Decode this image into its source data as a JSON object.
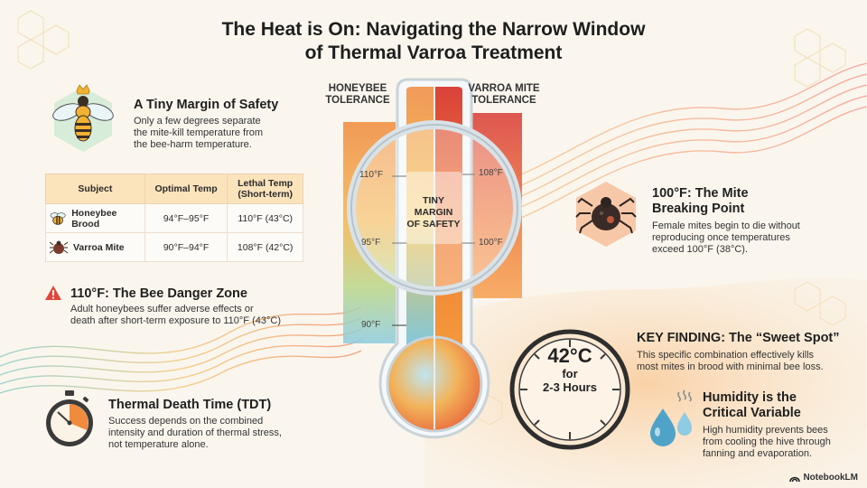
{
  "title": {
    "line1": "The Heat is On: Navigating the Narrow Window",
    "line2": "of Thermal Varroa Treatment"
  },
  "margin_safety": {
    "heading": "A Tiny Margin of Safety",
    "text1": "Only a few degrees separate",
    "text2": "the mite-kill temperature from",
    "text3": "the bee-harm temperature."
  },
  "table": {
    "headers": [
      "Subject",
      "Optimal Temp",
      "Lethal Temp (Short-term)"
    ],
    "rows": [
      {
        "subject": "Honeybee Brood",
        "optimal": "94°F–95°F",
        "lethal": "110°F (43°C)"
      },
      {
        "subject": "Varroa Mite",
        "optimal": "90°F–94°F",
        "lethal": "108°F (42°C)"
      }
    ]
  },
  "danger": {
    "heading": "110°F: The Bee Danger Zone",
    "text1": "Adult honeybees suffer adverse effects or",
    "text2": "death after short-term exposure to 110°F (43°C)"
  },
  "tdt": {
    "heading": "Thermal Death Time (TDT)",
    "text1": "Success depends on the combined",
    "text2": "intensity and duration of thermal stress,",
    "text3": "not temperature alone."
  },
  "thermometer": {
    "left_head1": "HONEYBEE",
    "left_head2": "TOLERANCE",
    "right_head1": "VARROA MITE",
    "right_head2": "TOLERANCE",
    "left_marks": [
      "110°F",
      "95°F",
      "90°F"
    ],
    "right_marks": [
      "108°F",
      "100°F"
    ],
    "center1": "TINY",
    "center2": "MARGIN",
    "center3": "OF SAFETY"
  },
  "mite_point": {
    "heading1": "100°F: The Mite",
    "heading2": "Breaking Point",
    "text1": "Female mites begin to die without",
    "text2": "reproducing once temperatures",
    "text3": "exceed 100°F (38°C)."
  },
  "key_finding": {
    "heading": "KEY FINDING: The “Sweet Spot”",
    "text1": "This specific combination effectively kills",
    "text2": "most mites in brood with minimal bee loss."
  },
  "sweet_spot": {
    "temp": "42°C",
    "for": "for",
    "duration": "2-3 Hours"
  },
  "humidity": {
    "heading1": "Humidity is the",
    "heading2": "Critical Variable",
    "text1": "High humidity prevents bees",
    "text2": "from cooling the hive through",
    "text3": "fanning and evaporation."
  },
  "brand": "NotebookLM",
  "colors": {
    "bee_tolerance": "#f2a63d",
    "mite_tolerance": "#e0463a",
    "accent_orange": "#f08a2c",
    "teal": "#5fb5b0"
  }
}
